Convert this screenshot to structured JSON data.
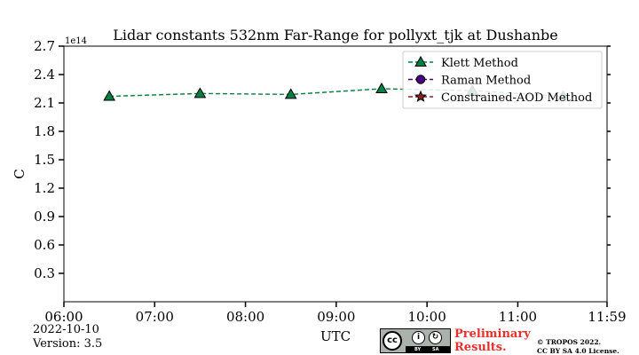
{
  "chart_data": {
    "type": "line",
    "title": "Lidar constants 532nm Far-Range for pollyxt_tjk at Dushanbe",
    "xlabel": "UTC",
    "ylabel": "C",
    "y_offset_label": "1e14",
    "xlim": [
      "06:00",
      "11:59"
    ],
    "ylim": [
      0,
      2.7
    ],
    "x_ticks": [
      "06:00",
      "07:00",
      "08:00",
      "09:00",
      "10:00",
      "11:00",
      "11:59"
    ],
    "y_ticks": [
      "0.3",
      "0.6",
      "0.9",
      "1.2",
      "1.5",
      "1.8",
      "2.1",
      "2.4",
      "2.7"
    ],
    "grid": false,
    "legend_position": "top-right",
    "series": [
      {
        "name": "Klett Method",
        "marker": "triangle",
        "linestyle": "dashed",
        "color": "#008040",
        "x": [
          "06:30",
          "07:30",
          "08:30",
          "09:30",
          "10:30",
          "11:30"
        ],
        "y": [
          2.17,
          2.2,
          2.19,
          2.25,
          2.23,
          2.17
        ]
      },
      {
        "name": "Raman Method",
        "marker": "circle",
        "linestyle": "dashed",
        "color": "#4b0082",
        "x": [],
        "y": []
      },
      {
        "name": "Constrained-AOD Method",
        "marker": "star",
        "linestyle": "dashed",
        "color": "#8b2222",
        "x": [],
        "y": []
      }
    ]
  },
  "footer": {
    "date": "2022-10-10",
    "version": "Version: 3.5",
    "preliminary_line1": "Preliminary",
    "preliminary_line2": "Results.",
    "copyright_line1": "© TROPOS 2022.",
    "copyright_line2": "CC BY SA 4.0 License.",
    "cc_label": "cc",
    "cc_by_label": "BY",
    "cc_sa_label": "SA"
  }
}
